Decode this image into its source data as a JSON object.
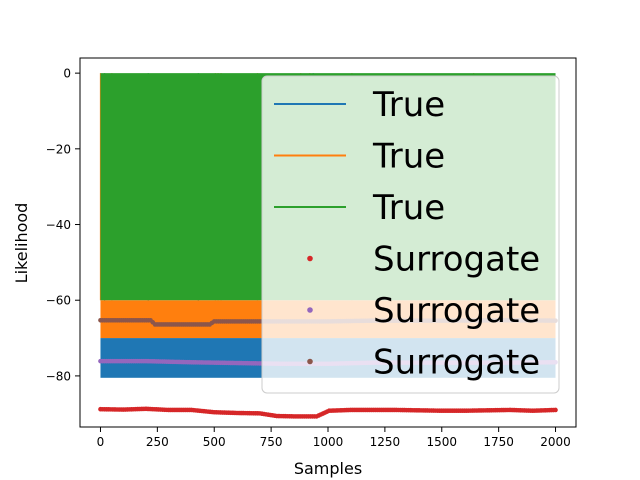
{
  "chart_data": {
    "type": "line",
    "xlabel": "Samples",
    "ylabel": "Likelihood",
    "xlim": [
      -90,
      2090
    ],
    "ylim": [
      -93.5,
      4
    ],
    "xticks": [
      0,
      250,
      500,
      750,
      1000,
      1250,
      1500,
      1750,
      2000
    ],
    "yticks": [
      0,
      -20,
      -40,
      -60,
      -80
    ],
    "grid": false,
    "legend_position": "upper right",
    "series": [
      {
        "name": "True",
        "kind": "line",
        "color": "#1f77b4",
        "band": [
          -80.5,
          -70
        ],
        "spikes_to": 0,
        "spike_x": [
          18,
          210,
          430,
          935
        ]
      },
      {
        "name": "True",
        "kind": "line",
        "color": "#ff7f0e",
        "band": [
          -70,
          -60
        ],
        "spikes_to": 0,
        "spike_x": [
          0,
          50,
          505,
          517,
          530,
          690,
          880,
          920,
          1105,
          1640
        ]
      },
      {
        "name": "True",
        "kind": "line",
        "color": "#2ca02c",
        "band": [
          -60,
          0
        ],
        "spikes_to": 0,
        "spike_x": [],
        "extends_to": 2000
      },
      {
        "name": "Surrogate",
        "kind": "scatter",
        "color": "#d62728",
        "points": [
          [
            0,
            -88.8
          ],
          [
            100,
            -88.9
          ],
          [
            200,
            -88.7
          ],
          [
            300,
            -89.0
          ],
          [
            400,
            -89.0
          ],
          [
            500,
            -89.6
          ],
          [
            600,
            -89.8
          ],
          [
            700,
            -89.9
          ],
          [
            775,
            -90.6
          ],
          [
            850,
            -90.7
          ],
          [
            950,
            -90.7
          ],
          [
            1005,
            -89.2
          ],
          [
            1100,
            -89.0
          ],
          [
            1200,
            -89.0
          ],
          [
            1300,
            -89.0
          ],
          [
            1400,
            -89.1
          ],
          [
            1500,
            -89.2
          ],
          [
            1600,
            -89.2
          ],
          [
            1700,
            -89.1
          ],
          [
            1800,
            -89.0
          ],
          [
            1900,
            -89.2
          ],
          [
            2000,
            -89.0
          ]
        ]
      },
      {
        "name": "Surrogate",
        "kind": "scatter",
        "color": "#9467bd",
        "points": [
          [
            0,
            -76.1
          ],
          [
            200,
            -76.1
          ],
          [
            400,
            -76.4
          ],
          [
            600,
            -76.6
          ],
          [
            800,
            -76.8
          ],
          [
            1000,
            -76.8
          ],
          [
            1200,
            -76.5
          ],
          [
            1400,
            -76.5
          ],
          [
            1600,
            -76.5
          ],
          [
            1800,
            -76.5
          ],
          [
            2000,
            -76.4
          ]
        ]
      },
      {
        "name": "Surrogate",
        "kind": "scatter",
        "color": "#8c564b",
        "points": [
          [
            0,
            -65.3
          ],
          [
            220,
            -65.3
          ],
          [
            240,
            -66.4
          ],
          [
            480,
            -66.4
          ],
          [
            500,
            -65.6
          ],
          [
            800,
            -65.6
          ],
          [
            1000,
            -65.6
          ],
          [
            1200,
            -65.4
          ],
          [
            1500,
            -65.4
          ],
          [
            1800,
            -65.3
          ],
          [
            2000,
            -65.4
          ]
        ]
      }
    ]
  }
}
